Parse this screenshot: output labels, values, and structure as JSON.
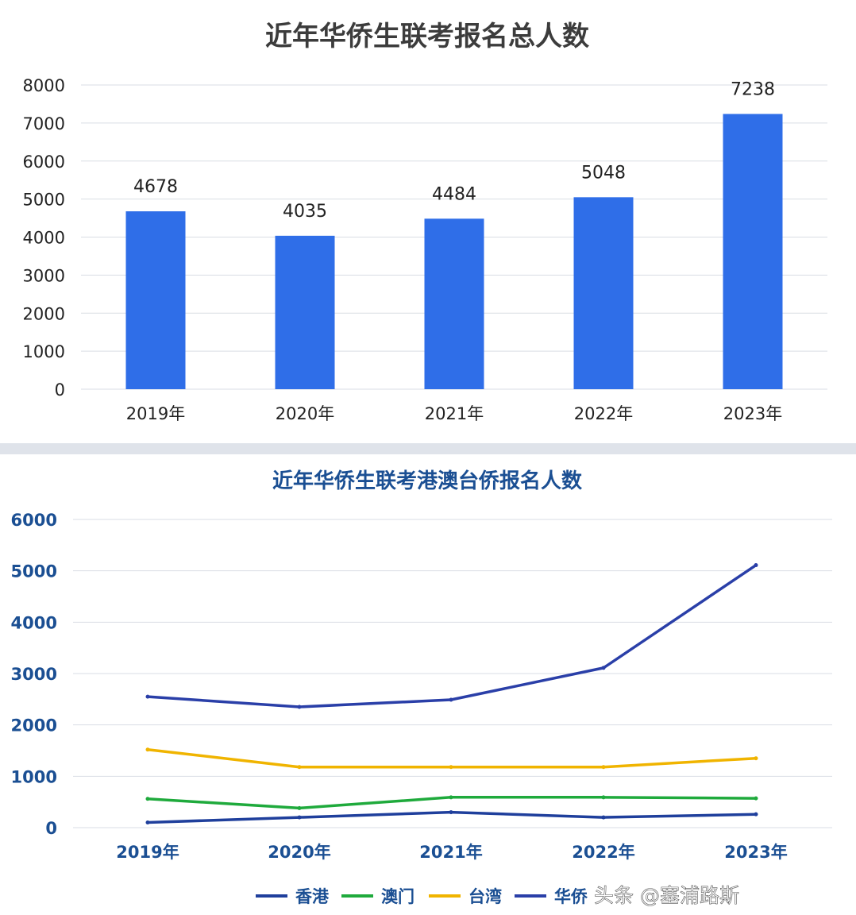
{
  "chart_data": [
    {
      "type": "bar",
      "title": "近年华侨生联考报名总人数",
      "categories": [
        "2019年",
        "2020年",
        "2021年",
        "2022年",
        "2023年"
      ],
      "values": [
        4678,
        4035,
        4484,
        5048,
        7238
      ],
      "data_labels": [
        "4678",
        "4035",
        "4484",
        "5048",
        "7238"
      ],
      "y_ticks": [
        "0",
        "1000",
        "2000",
        "3000",
        "4000",
        "5000",
        "6000",
        "7000",
        "8000"
      ],
      "ylim": [
        0,
        8000
      ],
      "grid": true,
      "colors": {
        "bar": "#2f6ee8",
        "grid": "#d9dde4"
      }
    },
    {
      "type": "line",
      "title": "近年华侨生联考港澳台侨报名人数",
      "categories": [
        "2019年",
        "2020年",
        "2021年",
        "2022年",
        "2023年"
      ],
      "y_ticks": [
        "0",
        "1000",
        "2000",
        "3000",
        "4000",
        "5000",
        "6000"
      ],
      "ylim": [
        0,
        6000
      ],
      "grid": true,
      "legend_position": "bottom",
      "series": [
        {
          "name": "香港",
          "color": "#1f3f9c",
          "values": [
            100,
            200,
            300,
            200,
            260
          ]
        },
        {
          "name": "澳门",
          "color": "#1faa3c",
          "values": [
            560,
            380,
            590,
            590,
            570
          ]
        },
        {
          "name": "台湾",
          "color": "#f0b400",
          "values": [
            1520,
            1180,
            1180,
            1180,
            1350
          ]
        },
        {
          "name": "华侨",
          "color": "#2a3fa8",
          "values": [
            2550,
            2350,
            2490,
            3110,
            5110
          ]
        }
      ]
    }
  ],
  "watermark": "头条 @塞浦路斯"
}
